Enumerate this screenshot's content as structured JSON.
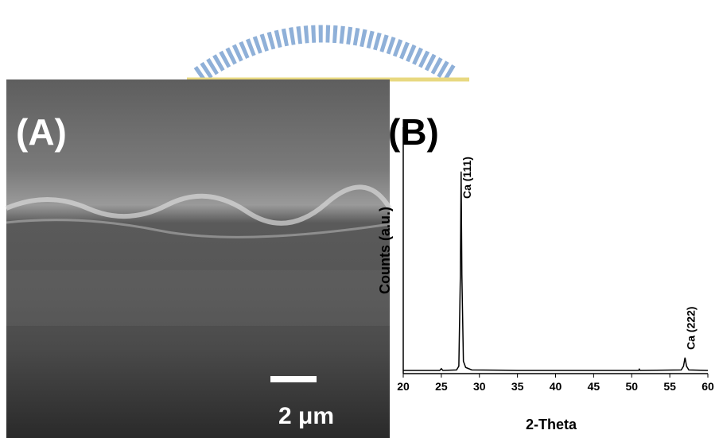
{
  "panel_a": {
    "label": "(A)",
    "scale_bar_label": "2 μm"
  },
  "chart_data": {
    "type": "line",
    "panel_label": "(B)",
    "x_label": "2-Theta",
    "y_label": "Counts (a.u.)",
    "xlim": [
      20,
      60
    ],
    "xticks": [
      20,
      25,
      30,
      35,
      40,
      45,
      50,
      55,
      60
    ],
    "ylim": [
      0,
      100
    ],
    "x": [
      20,
      24.8,
      25,
      25.2,
      27,
      27.3,
      27.5,
      27.6,
      27.7,
      27.9,
      28.2,
      29,
      35,
      50.9,
      51,
      51.1,
      56.5,
      56.8,
      57,
      57.2,
      57.5,
      60
    ],
    "values": [
      1.3,
      1.3,
      2,
      1.3,
      1.5,
      3,
      40,
      82,
      40,
      5,
      2.5,
      1.5,
      1.3,
      1.3,
      1.8,
      1.3,
      1.5,
      3,
      6.5,
      3,
      1.5,
      1.3
    ],
    "color": "#000000",
    "annotations": [
      {
        "text": "Ca (111)",
        "x": 27.6
      },
      {
        "text": "Ca (222)",
        "x": 57
      }
    ]
  }
}
